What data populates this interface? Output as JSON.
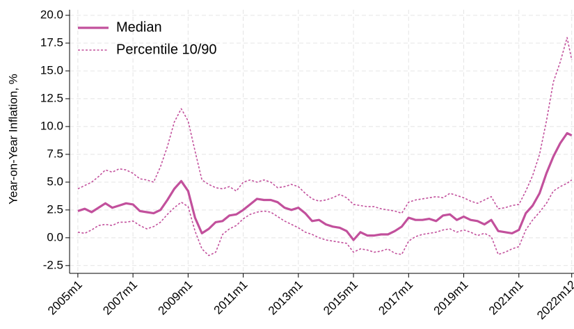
{
  "chart_data": {
    "type": "line",
    "ylabel": "Year-on-Year Inflation, %",
    "x": [
      2005,
      2005.25,
      2005.5,
      2005.75,
      2006,
      2006.25,
      2006.5,
      2006.75,
      2007,
      2007.25,
      2007.5,
      2007.75,
      2008,
      2008.25,
      2008.5,
      2008.75,
      2009,
      2009.25,
      2009.5,
      2009.75,
      2010,
      2010.25,
      2010.5,
      2010.75,
      2011,
      2011.25,
      2011.5,
      2011.75,
      2012,
      2012.25,
      2012.5,
      2012.75,
      2013,
      2013.25,
      2013.5,
      2013.75,
      2014,
      2014.25,
      2014.5,
      2014.75,
      2015,
      2015.25,
      2015.5,
      2015.75,
      2016,
      2016.25,
      2016.5,
      2016.75,
      2017,
      2017.25,
      2017.5,
      2017.75,
      2018,
      2018.25,
      2018.5,
      2018.75,
      2019,
      2019.25,
      2019.5,
      2019.75,
      2020,
      2020.25,
      2020.5,
      2020.75,
      2021,
      2021.25,
      2021.5,
      2021.75,
      2022,
      2022.25,
      2022.5,
      2022.75,
      2022.917
    ],
    "series": [
      {
        "name": "Median",
        "color": "#c2509c",
        "style": "solid",
        "values": [
          2.4,
          2.6,
          2.3,
          2.7,
          3.1,
          2.7,
          2.9,
          3.1,
          3.0,
          2.4,
          2.3,
          2.2,
          2.5,
          3.4,
          4.4,
          5.1,
          4.2,
          1.8,
          0.4,
          0.8,
          1.4,
          1.5,
          2.0,
          2.1,
          2.5,
          3.0,
          3.5,
          3.4,
          3.4,
          3.2,
          2.7,
          2.5,
          2.7,
          2.2,
          1.5,
          1.6,
          1.2,
          1.0,
          0.9,
          0.6,
          -0.2,
          0.5,
          0.2,
          0.2,
          0.3,
          0.3,
          0.6,
          1.0,
          1.8,
          1.6,
          1.6,
          1.7,
          1.5,
          2.0,
          2.1,
          1.6,
          1.9,
          1.6,
          1.5,
          1.2,
          1.6,
          0.6,
          0.5,
          0.4,
          0.7,
          2.2,
          2.9,
          4.0,
          5.8,
          7.3,
          8.5,
          9.4,
          9.2
        ]
      },
      {
        "name": "Percentile 10/90",
        "color": "#c2509c",
        "style": "dotted",
        "low": [
          0.5,
          0.4,
          0.7,
          1.1,
          1.2,
          1.1,
          1.4,
          1.4,
          1.5,
          1.1,
          0.8,
          1.0,
          1.4,
          2.1,
          2.7,
          3.2,
          2.8,
          0.6,
          -1.0,
          -1.6,
          -1.3,
          0.3,
          0.8,
          1.1,
          1.7,
          2.1,
          2.3,
          2.4,
          2.3,
          1.9,
          1.5,
          1.2,
          0.9,
          0.5,
          0.3,
          0.0,
          -0.2,
          -0.3,
          -0.4,
          -0.5,
          -1.3,
          -1.0,
          -1.1,
          -1.3,
          -1.2,
          -1.0,
          -1.4,
          -1.5,
          -0.3,
          0.1,
          0.3,
          0.4,
          0.5,
          0.7,
          0.8,
          0.5,
          0.7,
          0.5,
          0.2,
          0.4,
          0.1,
          -1.5,
          -1.3,
          -1.0,
          -0.8,
          0.7,
          1.6,
          2.3,
          3.1,
          4.2,
          4.6,
          4.9,
          5.2
        ],
        "high": [
          4.4,
          4.7,
          5.0,
          5.5,
          6.1,
          5.9,
          6.2,
          6.1,
          5.8,
          5.3,
          5.2,
          5.0,
          6.4,
          8.2,
          10.4,
          11.6,
          10.5,
          7.8,
          5.2,
          4.8,
          4.5,
          4.4,
          4.6,
          4.2,
          5.0,
          5.2,
          5.0,
          5.2,
          5.0,
          4.5,
          4.6,
          4.8,
          4.6,
          4.0,
          3.5,
          3.3,
          3.4,
          3.6,
          3.9,
          3.6,
          3.0,
          2.9,
          2.8,
          2.8,
          2.6,
          2.5,
          2.4,
          2.2,
          3.2,
          3.4,
          3.5,
          3.6,
          3.7,
          3.6,
          4.0,
          3.8,
          3.6,
          3.3,
          3.1,
          3.4,
          3.7,
          2.6,
          2.7,
          2.9,
          3.0,
          4.2,
          5.6,
          7.5,
          10.5,
          14.0,
          15.8,
          18.0,
          16.0
        ]
      }
    ],
    "xlim": [
      2004.7,
      2023.0
    ],
    "xticks": [
      {
        "value": 2005,
        "label": "2005m1"
      },
      {
        "value": 2007,
        "label": "2007m1"
      },
      {
        "value": 2009,
        "label": "2009m1"
      },
      {
        "value": 2011,
        "label": "2011m1"
      },
      {
        "value": 2013,
        "label": "2013m1"
      },
      {
        "value": 2015,
        "label": "2015m1"
      },
      {
        "value": 2017,
        "label": "2017m1"
      },
      {
        "value": 2019,
        "label": "2019m1"
      },
      {
        "value": 2021,
        "label": "2021m1"
      },
      {
        "value": 2022.917,
        "label": "2022m12"
      }
    ],
    "ylim": [
      -3.2,
      20.5
    ],
    "yticks": [
      -2.5,
      {
        "value": 0,
        "label": "0.0"
      },
      2.5,
      {
        "value": 5,
        "label": "5.0"
      },
      7.5,
      {
        "value": 10,
        "label": "10.0"
      },
      12.5,
      {
        "value": 15,
        "label": "15.0"
      },
      17.5,
      {
        "value": 20,
        "label": "20.0"
      }
    ],
    "grid": true,
    "legend": "upper left"
  }
}
